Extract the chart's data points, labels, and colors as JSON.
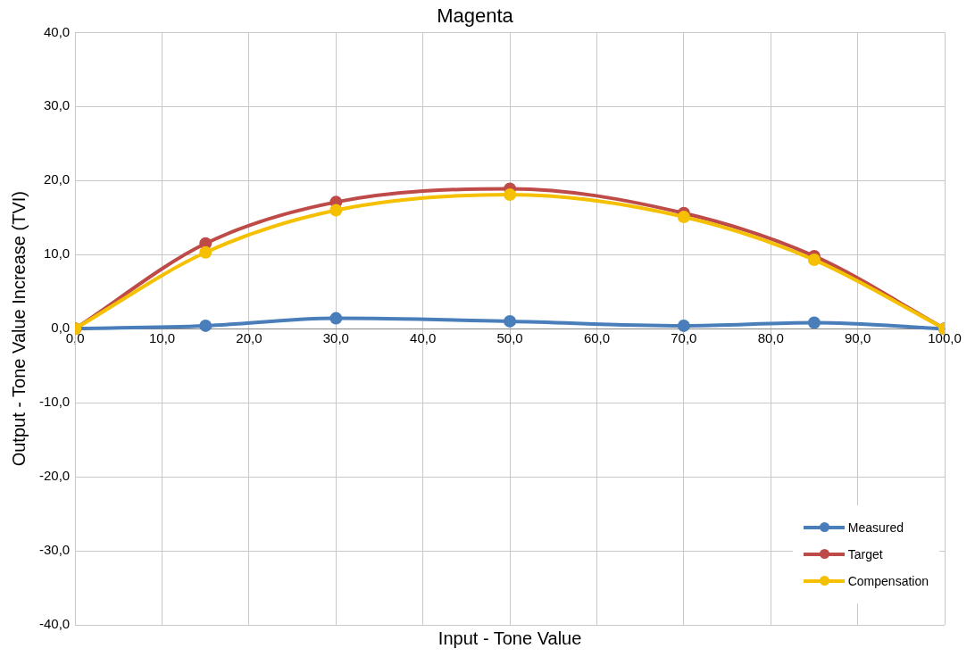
{
  "chart_data": {
    "type": "line",
    "title": "Magenta",
    "xlabel": "Input - Tone Value",
    "ylabel": "Output - Tone Value Increase (TVI)",
    "x": [
      0,
      15,
      30,
      50,
      70,
      85,
      100
    ],
    "series": [
      {
        "name": "Measured",
        "color": "#4a7ebb",
        "values": [
          0,
          0.4,
          1.4,
          1.0,
          0.4,
          0.8,
          0
        ]
      },
      {
        "name": "Target",
        "color": "#be4b48",
        "values": [
          0,
          11.5,
          17.1,
          18.9,
          15.6,
          9.8,
          0
        ]
      },
      {
        "name": "Compensation",
        "color": "#f5c000",
        "values": [
          0,
          10.3,
          16.0,
          18.1,
          15.1,
          9.3,
          0
        ]
      }
    ],
    "xlim": [
      0,
      100
    ],
    "xticks": [
      {
        "value": 0,
        "label": "0,0"
      },
      {
        "value": 10,
        "label": "10,0"
      },
      {
        "value": 20,
        "label": "20,0"
      },
      {
        "value": 30,
        "label": "30,0"
      },
      {
        "value": 40,
        "label": "40,0"
      },
      {
        "value": 50,
        "label": "50,0"
      },
      {
        "value": 60,
        "label": "60,0"
      },
      {
        "value": 70,
        "label": "70,0"
      },
      {
        "value": 80,
        "label": "80,0"
      },
      {
        "value": 90,
        "label": "90,0"
      },
      {
        "value": 100,
        "label": "100,0"
      }
    ],
    "ylim": [
      -40,
      40
    ],
    "yticks": [
      {
        "value": -40,
        "label": "-40,0"
      },
      {
        "value": -30,
        "label": "-30,0"
      },
      {
        "value": -20,
        "label": "-20,0"
      },
      {
        "value": -10,
        "label": "-10,0"
      },
      {
        "value": 0,
        "label": "0,0"
      },
      {
        "value": 10,
        "label": "10,0"
      },
      {
        "value": 20,
        "label": "20,0"
      },
      {
        "value": 30,
        "label": "30,0"
      },
      {
        "value": 40,
        "label": "40,0"
      }
    ],
    "grid": true,
    "legend": "bottom right",
    "marker": "circle",
    "line_style": "solid"
  }
}
